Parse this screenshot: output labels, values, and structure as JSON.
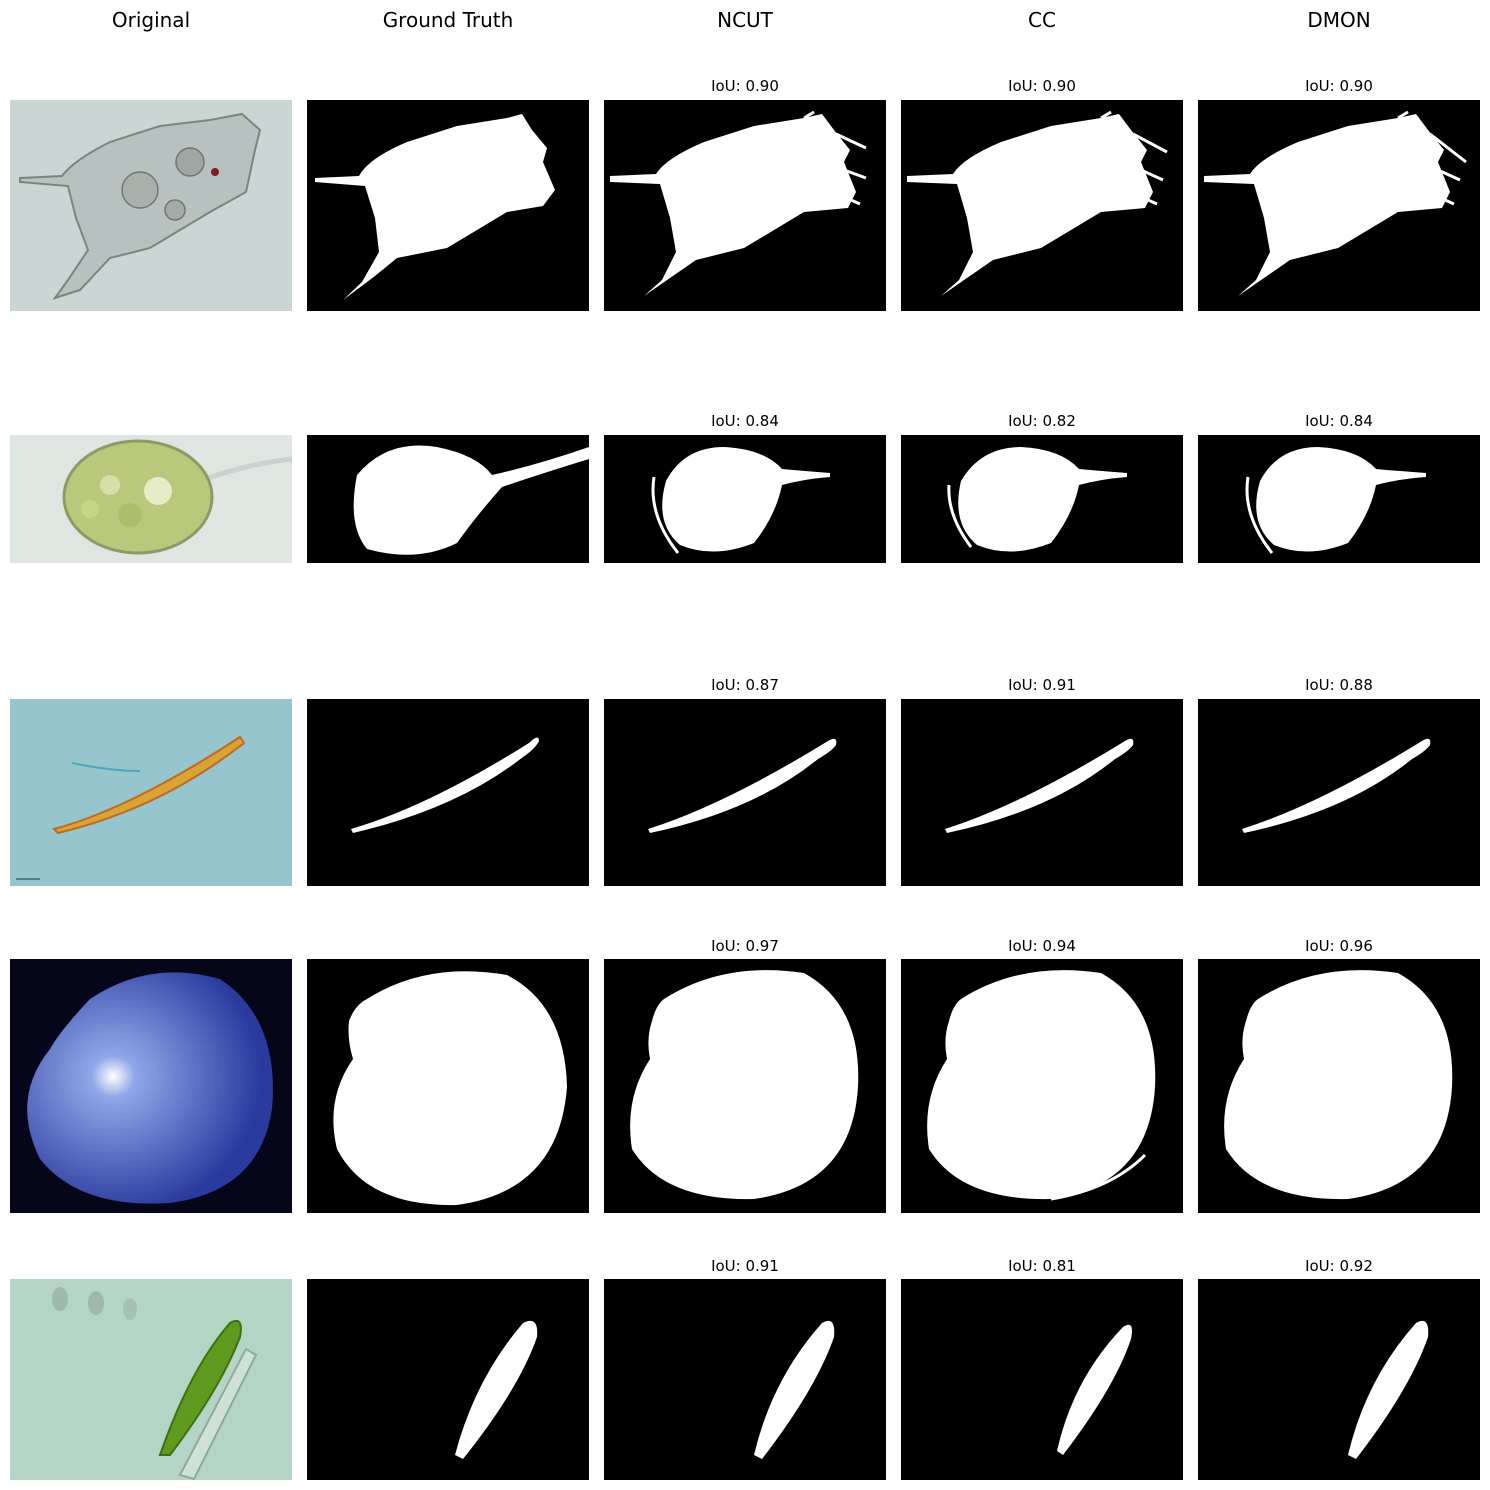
{
  "columns": [
    "Original",
    "Ground Truth",
    "NCUT",
    "CC",
    "DMON"
  ],
  "iou_prefix": "IoU:",
  "rows": [
    {
      "subject": "rotifer-like organism with spines",
      "iou": [
        "0.90",
        "0.90",
        "0.90"
      ]
    },
    {
      "subject": "green flagellate cell with tail",
      "iou": [
        "0.84",
        "0.82",
        "0.84"
      ]
    },
    {
      "subject": "elongated orange ciliate",
      "iou": [
        "0.87",
        "0.91",
        "0.88"
      ]
    },
    {
      "subject": "blue round cell",
      "iou": [
        "0.97",
        "0.94",
        "0.96"
      ]
    },
    {
      "subject": "green euglena cell",
      "iou": [
        "0.91",
        "0.81",
        "0.92"
      ]
    }
  ],
  "colors": {
    "mask_bg": "#000000",
    "mask_fg": "#ffffff",
    "bg1": "#c9d6d3",
    "bg2": "#eef2ef",
    "bg3": "#96c5ce",
    "bg4": "#05061a",
    "bg5": "#b4d4c5"
  }
}
